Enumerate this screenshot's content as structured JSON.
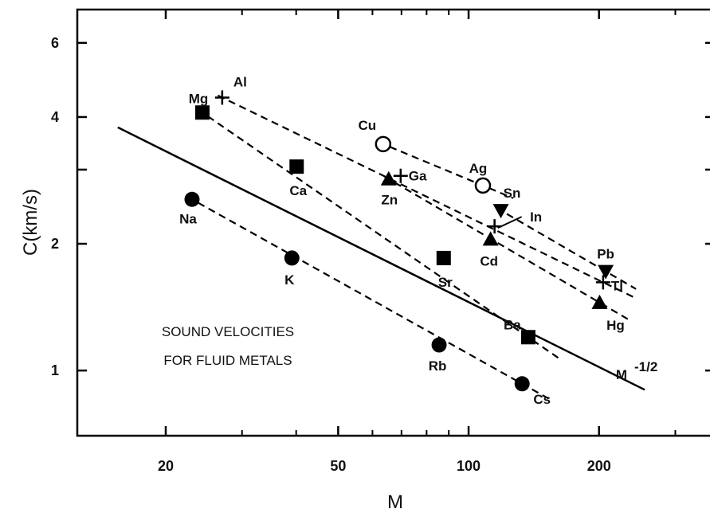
{
  "chart_data": {
    "type": "scatter",
    "scale": "log-log",
    "xlabel": "M",
    "ylabel": "C(km/s)",
    "xlim": [
      12.5,
      370
    ],
    "ylim": [
      0.7,
      7.2
    ],
    "xticks": [
      20,
      50,
      100,
      200
    ],
    "yticks": [
      1,
      2,
      4,
      6
    ],
    "annotation": [
      "SOUND VELOCITIES",
      "FOR FLUID METALS"
    ],
    "reference_line": {
      "label": "M",
      "exponent_label": "-1/2",
      "x": [
        15.5,
        255
      ],
      "y": [
        3.78,
        0.9
      ]
    },
    "series": [
      {
        "marker": "circle",
        "points": [
          {
            "label": "Na",
            "x": 23,
            "y": 2.55
          },
          {
            "label": "K",
            "x": 39.1,
            "y": 1.85
          },
          {
            "label": "Rb",
            "x": 85.5,
            "y": 1.15
          },
          {
            "label": "Cs",
            "x": 132.9,
            "y": 0.93
          }
        ]
      },
      {
        "marker": "square",
        "points": [
          {
            "label": "Mg",
            "x": 24.3,
            "y": 4.1
          },
          {
            "label": "Ca",
            "x": 40.1,
            "y": 3.05
          },
          {
            "label": "Sr",
            "x": 87.6,
            "y": 1.85
          },
          {
            "label": "Ba",
            "x": 137.3,
            "y": 1.2
          }
        ]
      },
      {
        "marker": "plus",
        "points": [
          {
            "label": "Al",
            "x": 27,
            "y": 4.45
          },
          {
            "label": "Ga",
            "x": 69.7,
            "y": 2.9
          },
          {
            "label": "In",
            "x": 114.8,
            "y": 2.2
          },
          {
            "label": "Tl",
            "x": 204.4,
            "y": 1.62
          }
        ]
      },
      {
        "marker": "open-circle",
        "points": [
          {
            "label": "Cu",
            "x": 63.5,
            "y": 3.45
          },
          {
            "label": "Ag",
            "x": 107.9,
            "y": 2.75
          }
        ]
      },
      {
        "marker": "triangle-up",
        "points": [
          {
            "label": "Zn",
            "x": 65.4,
            "y": 2.85
          },
          {
            "label": "Cd",
            "x": 112.4,
            "y": 2.05
          },
          {
            "label": "Hg",
            "x": 200.6,
            "y": 1.45
          }
        ]
      },
      {
        "marker": "triangle-down",
        "points": [
          {
            "label": "Sn",
            "x": 118.7,
            "y": 2.4
          },
          {
            "label": "Pb",
            "x": 207.2,
            "y": 1.72
          }
        ]
      }
    ]
  }
}
